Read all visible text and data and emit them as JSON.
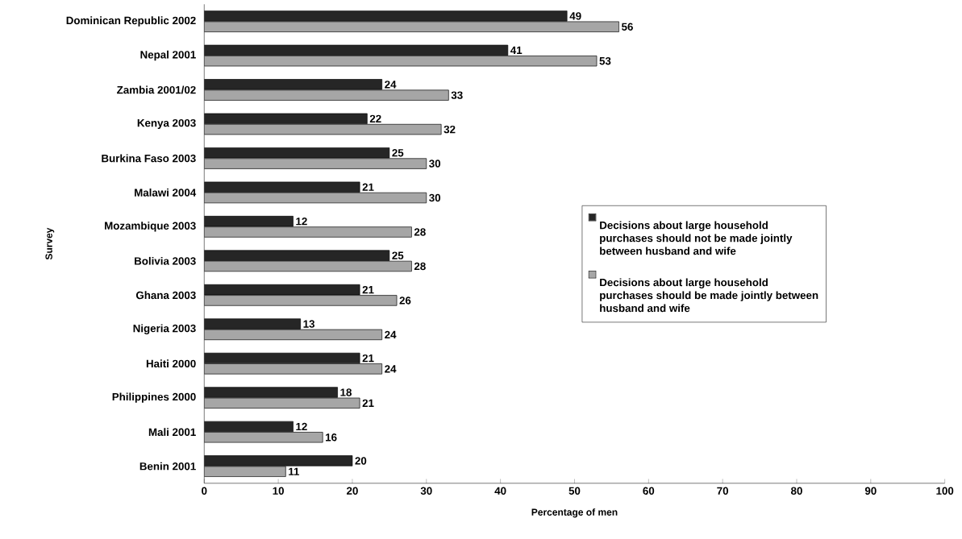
{
  "chart_data": {
    "type": "bar",
    "orientation": "horizontal",
    "xlabel": "Percentage of men",
    "ylabel": "Survey",
    "categories": [
      "Dominican Republic 2002",
      "Nepal 2001",
      "Zambia 2001/02",
      "Kenya 2003",
      "Burkina Faso 2003",
      "Malawi 2004",
      "Mozambique 2003",
      "Bolivia 2003",
      "Ghana 2003",
      "Nigeria 2003",
      "Haiti 2000",
      "Philippines 2000",
      "Mali 2001",
      "Benin 2001"
    ],
    "series": [
      {
        "name": "Decisions about large household purchases should not be made jointly between husband and wife",
        "color": "#262626",
        "values": [
          49,
          41,
          24,
          22,
          25,
          21,
          12,
          25,
          21,
          13,
          21,
          18,
          12,
          20
        ]
      },
      {
        "name": "Decisions about large household purchases should be made jointly between husband and wife",
        "color": "#a6a6a6",
        "values": [
          56,
          53,
          33,
          32,
          30,
          30,
          28,
          28,
          26,
          24,
          24,
          21,
          16,
          11
        ]
      }
    ],
    "xlim": [
      0,
      100
    ],
    "xticks": [
      0,
      10,
      20,
      30,
      40,
      50,
      60,
      70,
      80,
      90,
      100
    ],
    "data_labels": true,
    "legend": "right",
    "grid": false
  }
}
